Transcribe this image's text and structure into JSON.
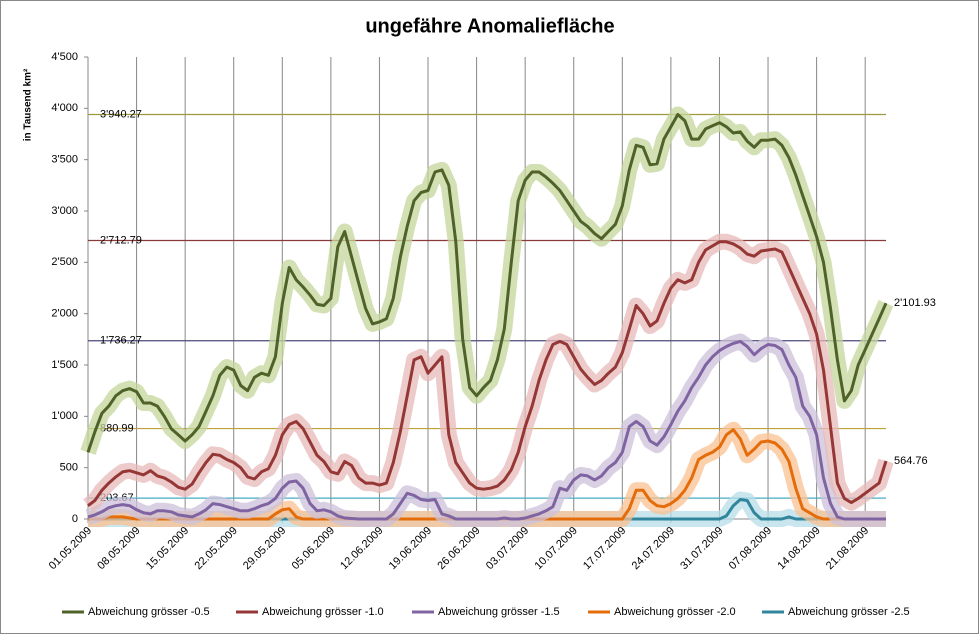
{
  "chart_data": {
    "type": "line",
    "title": "ungefähre Anomaliefläche",
    "y_label": "in Tausend  km²",
    "ylim": [
      0,
      4500
    ],
    "yticks": [
      0,
      500,
      {
        "value": 1000,
        "label": "1'000"
      },
      {
        "value": 1500,
        "label": "1'500"
      },
      {
        "value": 2000,
        "label": "2'000"
      },
      {
        "value": 2500,
        "label": "2'500"
      },
      {
        "value": 3000,
        "label": "3'000"
      },
      {
        "value": 3500,
        "label": "3'500"
      },
      {
        "value": 4000,
        "label": "4'000"
      },
      {
        "value": 4500,
        "label": "4'500"
      }
    ],
    "grid": true,
    "legend": "bottom",
    "categories": [
      "01.05.2009",
      null,
      null,
      null,
      null,
      null,
      null,
      "08.05.2009",
      null,
      null,
      null,
      null,
      null,
      null,
      "15.05.2009",
      null,
      null,
      null,
      null,
      null,
      null,
      "22.05.2009",
      null,
      null,
      null,
      null,
      null,
      null,
      "29.05.2009",
      null,
      null,
      null,
      null,
      null,
      null,
      "05.06.2009",
      null,
      null,
      null,
      null,
      null,
      null,
      "12.06.2009",
      null,
      null,
      null,
      null,
      null,
      null,
      "19.06.2009",
      null,
      null,
      null,
      null,
      null,
      null,
      "26.06.2009",
      null,
      null,
      null,
      null,
      null,
      null,
      "03.07.2009",
      null,
      null,
      null,
      null,
      null,
      null,
      "10.07.2009",
      null,
      null,
      null,
      null,
      null,
      null,
      "17.07.2009",
      null,
      null,
      null,
      null,
      null,
      null,
      "24.07.2009",
      null,
      null,
      null,
      null,
      null,
      null,
      "31.07.2009",
      null,
      null,
      null,
      null,
      null,
      null,
      "07.08.2009",
      null,
      null,
      null,
      null,
      null,
      null,
      "14.08.2009",
      null,
      null,
      null,
      null,
      null,
      null,
      "21.08.2009",
      null,
      null,
      null
    ],
    "reference_lines": [
      {
        "value": 3940.27,
        "label": "3'940.27",
        "color": "#9c9a3c"
      },
      {
        "value": 2712.79,
        "label": "2'712.79",
        "color": "#8b3a3a"
      },
      {
        "value": 1736.27,
        "label": "1'736.27",
        "color": "#4a4a7a"
      },
      {
        "value": 880.99,
        "label": "880.99",
        "color": "#c0a040"
      },
      {
        "value": 203.67,
        "label": "203.67",
        "color": "#4aacc6"
      }
    ],
    "series": [
      {
        "name": "Abweichung grösser -0.5",
        "color": "#4f6228",
        "band_color": "#c3d69b",
        "values": [
          650,
          850,
          1030,
          1100,
          1200,
          1250,
          1270,
          1240,
          1130,
          1130,
          1100,
          1000,
          880,
          820,
          760,
          820,
          900,
          1050,
          1200,
          1400,
          1480,
          1450,
          1300,
          1250,
          1380,
          1420,
          1400,
          1580,
          2100,
          2450,
          2330,
          2260,
          2180,
          2090,
          2080,
          2150,
          2650,
          2800,
          2550,
          2300,
          2050,
          1900,
          1920,
          1950,
          2150,
          2550,
          2850,
          3100,
          3180,
          3200,
          3380,
          3400,
          3250,
          2700,
          1750,
          1280,
          1200,
          1280,
          1350,
          1550,
          1850,
          2500,
          3100,
          3300,
          3380,
          3380,
          3330,
          3270,
          3200,
          3100,
          3000,
          2900,
          2850,
          2780,
          2730,
          2800,
          2870,
          3050,
          3400,
          3640,
          3620,
          3450,
          3460,
          3700,
          3820,
          3940,
          3880,
          3700,
          3700,
          3800,
          3830,
          3860,
          3820,
          3760,
          3770,
          3680,
          3620,
          3690,
          3690,
          3700,
          3640,
          3520,
          3350,
          3150,
          2950,
          2750,
          2500,
          2050,
          1550,
          1150,
          1250,
          1500,
          1650,
          1800,
          1950,
          2101.93
        ],
        "value_labels": [
          null,
          null,
          null,
          null,
          null,
          null,
          null,
          null,
          null,
          null,
          null,
          null,
          null,
          null,
          null,
          null,
          null,
          null,
          null,
          null,
          null,
          null,
          null,
          null,
          null,
          null,
          null,
          null,
          null,
          null,
          null,
          null,
          null,
          null,
          null,
          null,
          null,
          null,
          null,
          null,
          null,
          null,
          null,
          null,
          null,
          null,
          null,
          null,
          null,
          null,
          null,
          null,
          null,
          null,
          null,
          null,
          null,
          null,
          null,
          null,
          null,
          null,
          null,
          null,
          null,
          null,
          null,
          null,
          null,
          null,
          null,
          null,
          null,
          null,
          null,
          null,
          null,
          null,
          null,
          null,
          null,
          null,
          null,
          null,
          null,
          null,
          null,
          null,
          null,
          null,
          null,
          null,
          null,
          null,
          null,
          null,
          null,
          null,
          null,
          null,
          null,
          null,
          null,
          null,
          null,
          null,
          null,
          null,
          null,
          null,
          null,
          null,
          null,
          null,
          null,
          "2'101.93"
        ]
      },
      {
        "name": "Abweichung grösser -1.0",
        "color": "#953735",
        "band_color": "#e6b9b8",
        "values": [
          130,
          180,
          280,
          350,
          410,
          460,
          470,
          450,
          430,
          470,
          420,
          400,
          360,
          310,
          290,
          340,
          450,
          550,
          630,
          620,
          580,
          550,
          500,
          410,
          390,
          460,
          490,
          620,
          820,
          920,
          950,
          880,
          750,
          620,
          560,
          460,
          440,
          560,
          520,
          400,
          350,
          350,
          330,
          350,
          550,
          850,
          1200,
          1550,
          1580,
          1420,
          1500,
          1580,
          820,
          550,
          450,
          350,
          300,
          290,
          300,
          320,
          380,
          480,
          650,
          900,
          1100,
          1350,
          1550,
          1700,
          1730,
          1700,
          1580,
          1460,
          1380,
          1310,
          1350,
          1420,
          1480,
          1620,
          1850,
          2080,
          2000,
          1880,
          1930,
          2100,
          2250,
          2330,
          2300,
          2330,
          2500,
          2620,
          2660,
          2700,
          2700,
          2680,
          2640,
          2580,
          2560,
          2610,
          2620,
          2630,
          2600,
          2450,
          2300,
          2150,
          2000,
          1800,
          1450,
          900,
          350,
          200,
          160,
          200,
          250,
          300,
          350,
          564.76
        ],
        "value_labels": [
          null,
          null,
          null,
          null,
          null,
          null,
          null,
          null,
          null,
          null,
          null,
          null,
          null,
          null,
          null,
          null,
          null,
          null,
          null,
          null,
          null,
          null,
          null,
          null,
          null,
          null,
          null,
          null,
          null,
          null,
          null,
          null,
          null,
          null,
          null,
          null,
          null,
          null,
          null,
          null,
          null,
          null,
          null,
          null,
          null,
          null,
          null,
          null,
          null,
          null,
          null,
          null,
          null,
          null,
          null,
          null,
          null,
          null,
          null,
          null,
          null,
          null,
          null,
          null,
          null,
          null,
          null,
          null,
          null,
          null,
          null,
          null,
          null,
          null,
          null,
          null,
          null,
          null,
          null,
          null,
          null,
          null,
          null,
          null,
          null,
          null,
          null,
          null,
          null,
          null,
          null,
          null,
          null,
          null,
          null,
          null,
          null,
          null,
          null,
          null,
          null,
          null,
          null,
          null,
          null,
          null,
          null,
          null,
          null,
          null,
          null,
          null,
          null,
          null,
          null,
          "564.76"
        ]
      },
      {
        "name": "Abweichung grösser -1.5",
        "color": "#8064a2",
        "band_color": "#ccc1da",
        "values": [
          20,
          40,
          70,
          110,
          130,
          140,
          130,
          90,
          60,
          50,
          80,
          80,
          70,
          40,
          30,
          20,
          50,
          90,
          150,
          140,
          120,
          100,
          80,
          80,
          100,
          130,
          150,
          200,
          300,
          360,
          370,
          300,
          150,
          80,
          90,
          70,
          30,
          10,
          5,
          0,
          0,
          0,
          0,
          0,
          50,
          150,
          250,
          230,
          190,
          180,
          190,
          50,
          30,
          0,
          0,
          0,
          0,
          0,
          0,
          0,
          10,
          0,
          0,
          10,
          30,
          50,
          80,
          120,
          300,
          280,
          380,
          430,
          420,
          380,
          420,
          500,
          550,
          650,
          900,
          950,
          900,
          760,
          720,
          800,
          920,
          1050,
          1150,
          1280,
          1380,
          1500,
          1580,
          1640,
          1680,
          1710,
          1730,
          1680,
          1600,
          1660,
          1700,
          1690,
          1650,
          1500,
          1380,
          1100,
          1000,
          820,
          400,
          150,
          20,
          0,
          0,
          0,
          0,
          0,
          0,
          0
        ]
      },
      {
        "name": "Abweichung grösser -2.0",
        "color": "#e46c0a",
        "band_color": "#fac090",
        "values": [
          0,
          0,
          0,
          20,
          20,
          20,
          10,
          0,
          0,
          0,
          0,
          0,
          0,
          0,
          0,
          0,
          0,
          0,
          0,
          0,
          0,
          0,
          0,
          0,
          0,
          0,
          0,
          50,
          90,
          100,
          20,
          0,
          0,
          0,
          0,
          0,
          0,
          0,
          0,
          0,
          0,
          0,
          0,
          0,
          0,
          0,
          0,
          0,
          0,
          0,
          0,
          0,
          0,
          0,
          0,
          0,
          0,
          0,
          0,
          0,
          0,
          0,
          0,
          0,
          0,
          0,
          0,
          0,
          0,
          0,
          0,
          0,
          0,
          0,
          0,
          0,
          0,
          0,
          100,
          280,
          280,
          180,
          130,
          120,
          150,
          200,
          280,
          400,
          580,
          620,
          650,
          700,
          820,
          870,
          780,
          620,
          680,
          750,
          760,
          740,
          680,
          560,
          300,
          100,
          60,
          20,
          0,
          0,
          0,
          0,
          0,
          0,
          0,
          0,
          0,
          0
        ]
      },
      {
        "name": "Abweichung grösser -2.5",
        "color": "#31859c",
        "band_color": "#b7dee8",
        "values": [
          0,
          0,
          0,
          0,
          0,
          0,
          0,
          0,
          0,
          0,
          0,
          0,
          0,
          0,
          0,
          0,
          0,
          0,
          0,
          0,
          0,
          0,
          0,
          0,
          0,
          0,
          0,
          0,
          0,
          0,
          0,
          0,
          0,
          0,
          0,
          0,
          0,
          0,
          0,
          0,
          0,
          0,
          0,
          0,
          0,
          0,
          0,
          0,
          0,
          0,
          0,
          0,
          0,
          0,
          0,
          0,
          0,
          0,
          0,
          0,
          0,
          0,
          0,
          0,
          0,
          0,
          0,
          0,
          0,
          0,
          0,
          0,
          0,
          0,
          0,
          0,
          0,
          0,
          0,
          0,
          0,
          0,
          0,
          0,
          0,
          0,
          0,
          0,
          0,
          0,
          0,
          0,
          30,
          130,
          190,
          180,
          60,
          0,
          0,
          0,
          0,
          20,
          0,
          0,
          0,
          0,
          0,
          0,
          0,
          0,
          0,
          0,
          0,
          0,
          0,
          0
        ]
      }
    ]
  }
}
